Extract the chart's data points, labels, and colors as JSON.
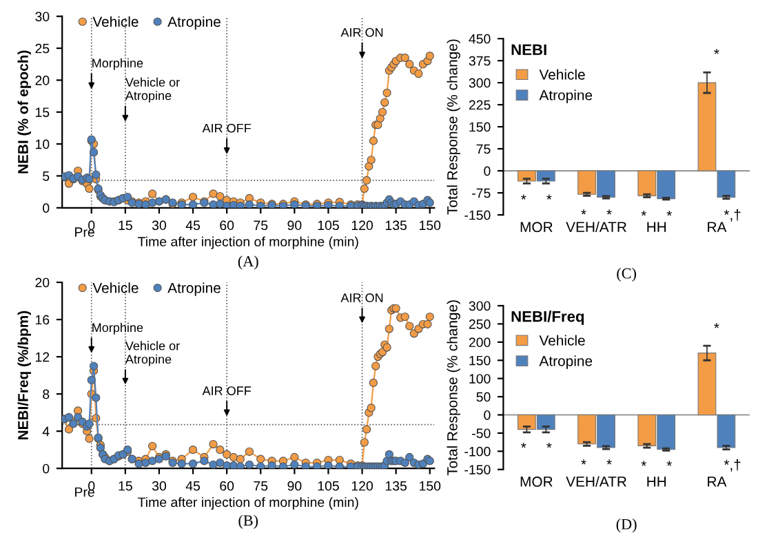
{
  "chart_data": [
    {
      "type": "line",
      "ylabel": "NEBI (% of epoch)",
      "xlabel": "Time after injection of morphine (min)",
      "marker": "circle",
      "legend": "top left",
      "xlim": [
        -13,
        152
      ],
      "ylim": [
        0,
        30
      ],
      "xticks": [
        0,
        15,
        30,
        45,
        60,
        75,
        90,
        105,
        120,
        135,
        150
      ],
      "yticks": [
        0,
        5,
        10,
        15,
        20,
        25,
        30
      ],
      "x": [
        -12,
        -10,
        -8,
        -6,
        -4,
        -2,
        -1,
        0,
        1,
        2,
        3,
        4,
        5,
        6,
        8,
        10,
        12,
        14,
        16,
        18,
        21,
        24,
        27,
        30,
        33,
        36,
        40,
        45,
        50,
        54,
        57,
        60,
        63,
        66,
        70,
        75,
        80,
        85,
        90,
        95,
        100,
        105,
        110,
        115,
        118,
        120,
        121,
        122,
        123,
        124,
        125,
        126,
        127,
        128,
        129,
        130,
        131,
        132,
        133,
        134,
        135,
        137,
        139,
        141,
        143,
        145,
        147,
        149,
        150
      ],
      "series": [
        {
          "name": "Vehicle",
          "color": "#f39c45",
          "values": [
            4.8,
            3.8,
            4.5,
            5.8,
            4.2,
            3.8,
            3.0,
            10.5,
            10.0,
            4.5,
            2.8,
            1.8,
            1.5,
            1.2,
            1.0,
            1.0,
            1.2,
            1.5,
            1.2,
            1.0,
            0.8,
            1.0,
            2.2,
            1.0,
            1.3,
            0.6,
            0.8,
            1.7,
            1.0,
            2.2,
            1.8,
            1.2,
            1.0,
            0.8,
            1.5,
            0.8,
            0.6,
            0.6,
            1.0,
            0.5,
            0.6,
            0.8,
            0.9,
            0.5,
            0.5,
            0.5,
            3.0,
            4.3,
            6.5,
            7.5,
            10.5,
            13,
            13,
            14,
            15,
            16.5,
            18,
            21.5,
            22,
            22.5,
            23,
            23.5,
            23.5,
            22.5,
            21.5,
            21,
            22.5,
            23,
            23.8
          ]
        },
        {
          "name": "Atropine",
          "color": "#4f81bd",
          "values": [
            4.9,
            5.1,
            4.6,
            4.9,
            4.4,
            4.7,
            4.5,
            10.7,
            8.7,
            5.2,
            3.0,
            2.0,
            1.5,
            1.2,
            1.0,
            0.9,
            1.2,
            1.5,
            1.7,
            0.8,
            0.6,
            0.5,
            0.8,
            1.0,
            1.3,
            0.8,
            0.5,
            0.5,
            0.8,
            0.5,
            0.6,
            0.3,
            0.4,
            0.3,
            0.5,
            0.3,
            0.4,
            0.3,
            0.5,
            0.3,
            0.3,
            0.4,
            0.3,
            0.3,
            0.3,
            0.4,
            0.3,
            0.3,
            0.2,
            0.3,
            0.2,
            0.3,
            0.2,
            0.3,
            0.2,
            0.4,
            0.8,
            1.3,
            0.8,
            0.5,
            0.6,
            1.0,
            0.5,
            0.5,
            1.0,
            0.4,
            0.6,
            1.2,
            0.8
          ]
        }
      ],
      "ref_lines": [
        {
          "axis": "x",
          "value": 0,
          "label": "Morphine"
        },
        {
          "axis": "x",
          "value": 15,
          "label": "Vehicle or\nAtropine"
        },
        {
          "axis": "x",
          "value": 60,
          "label": "AIR OFF"
        },
        {
          "axis": "x",
          "value": 120,
          "label": "AIR ON"
        },
        {
          "axis": "y",
          "value": 4.3,
          "label": null
        }
      ],
      "annotations": [
        "Pre",
        "(A)"
      ]
    },
    {
      "type": "bar",
      "title": "NEBI",
      "ylabel": "Total Response (% change)",
      "legend": "top left",
      "categories": [
        "MOR",
        "VEH/ATR",
        "HH",
        "RA"
      ],
      "ylim": [
        -150,
        450
      ],
      "yticks": [
        -150,
        -75,
        0,
        75,
        150,
        225,
        300,
        375,
        450
      ],
      "series": [
        {
          "name": "Vehicle",
          "color": "#f39c45",
          "values": [
            -35,
            -80,
            -85,
            300
          ],
          "errors": [
            8,
            5,
            5,
            35
          ]
        },
        {
          "name": "Atropine",
          "color": "#4f81bd",
          "values": [
            -35,
            -90,
            -95,
            -90
          ],
          "errors": [
            8,
            4,
            3,
            5
          ]
        }
      ],
      "annotations": [
        "*     *",
        "*     *",
        "*     *",
        "*",
        "        *,†",
        "(C)"
      ]
    },
    {
      "type": "line",
      "ylabel": "NEBI/Freq (%/bpm)",
      "xlabel": "Time after injection of morphine (min)",
      "marker": "circle",
      "legend": "top left",
      "xlim": [
        -13,
        152
      ],
      "ylim": [
        0,
        20
      ],
      "xticks": [
        0,
        15,
        30,
        45,
        60,
        75,
        90,
        105,
        120,
        135,
        150
      ],
      "yticks": [
        0,
        4,
        8,
        12,
        16,
        20
      ],
      "x": [
        -12,
        -10,
        -8,
        -6,
        -4,
        -2,
        -1,
        0,
        1,
        2,
        3,
        4,
        5,
        6,
        8,
        10,
        12,
        14,
        16,
        18,
        21,
        24,
        27,
        30,
        33,
        36,
        40,
        45,
        50,
        54,
        57,
        60,
        63,
        66,
        70,
        75,
        80,
        85,
        90,
        95,
        100,
        105,
        110,
        115,
        118,
        120,
        121,
        122,
        123,
        124,
        125,
        126,
        127,
        128,
        129,
        130,
        131,
        132,
        133,
        134,
        135,
        137,
        139,
        141,
        143,
        145,
        147,
        149,
        150
      ],
      "series": [
        {
          "name": "Vehicle",
          "color": "#f39c45",
          "values": [
            5.3,
            4.2,
            5.0,
            6.2,
            4.8,
            4.0,
            3.2,
            8.0,
            10.5,
            5.4,
            3.2,
            2.5,
            1.5,
            1.2,
            0.8,
            1.0,
            1.3,
            1.5,
            1.8,
            1.0,
            0.8,
            1.0,
            2.4,
            1.2,
            1.5,
            0.8,
            1.0,
            2.0,
            1.2,
            2.6,
            2.0,
            1.5,
            1.2,
            1.0,
            1.8,
            1.0,
            0.8,
            0.8,
            1.2,
            0.6,
            0.6,
            0.9,
            0.9,
            0.5,
            0.3,
            0.3,
            2.8,
            4.2,
            6.0,
            6.5,
            9.2,
            11,
            12,
            12.3,
            12.5,
            13.3,
            13,
            15,
            17,
            17.2,
            17.2,
            16.2,
            16.3,
            15.3,
            14.5,
            15.0,
            15.5,
            15.5,
            16.3
          ]
        },
        {
          "name": "Atropine",
          "color": "#4f81bd",
          "values": [
            5.3,
            5.5,
            4.8,
            5.5,
            5.0,
            4.5,
            4.8,
            9.5,
            11.0,
            7.6,
            3.3,
            2.2,
            1.5,
            1.0,
            0.8,
            1.0,
            1.4,
            1.5,
            2.0,
            1.0,
            0.5,
            0.6,
            0.8,
            1.0,
            1.3,
            0.6,
            0.5,
            0.5,
            0.8,
            0.4,
            0.6,
            0.3,
            0.3,
            0.2,
            0.4,
            0.2,
            0.3,
            0.2,
            0.4,
            0.2,
            0.2,
            0.3,
            0.2,
            0.2,
            0.2,
            0.2,
            0.2,
            0.2,
            0.2,
            0.2,
            0.2,
            0.2,
            0.2,
            0.2,
            0.2,
            0.3,
            0.8,
            1.5,
            0.8,
            0.8,
            0.8,
            0.8,
            0.6,
            1.2,
            0.6,
            0.4,
            0.5,
            1.0,
            0.8
          ]
        }
      ],
      "ref_lines": [
        {
          "axis": "x",
          "value": 0,
          "label": "Morphine"
        },
        {
          "axis": "x",
          "value": 15,
          "label": "Vehicle or\nAtropine"
        },
        {
          "axis": "x",
          "value": 60,
          "label": "AIR OFF"
        },
        {
          "axis": "x",
          "value": 120,
          "label": "AIR ON"
        },
        {
          "axis": "y",
          "value": 4.7,
          "label": null
        }
      ],
      "annotations": [
        "Pre",
        "(B)"
      ]
    },
    {
      "type": "bar",
      "title": "NEBI/Freq",
      "ylabel": "Total Response (% change)",
      "legend": "top left",
      "categories": [
        "MOR",
        "VEH/ATR",
        "HH",
        "RA"
      ],
      "ylim": [
        -150,
        300
      ],
      "yticks": [
        -150,
        -100,
        -50,
        0,
        50,
        100,
        150,
        200,
        250,
        300
      ],
      "series": [
        {
          "name": "Vehicle",
          "color": "#f39c45",
          "values": [
            -40,
            -80,
            -85,
            170
          ],
          "errors": [
            8,
            5,
            5,
            20
          ]
        },
        {
          "name": "Atropine",
          "color": "#4f81bd",
          "values": [
            -40,
            -90,
            -95,
            -90
          ],
          "errors": [
            8,
            4,
            3,
            5
          ]
        }
      ],
      "annotations": [
        "*     *",
        "*     *",
        "*     *",
        "*",
        "        *,†",
        "(D)"
      ]
    }
  ]
}
